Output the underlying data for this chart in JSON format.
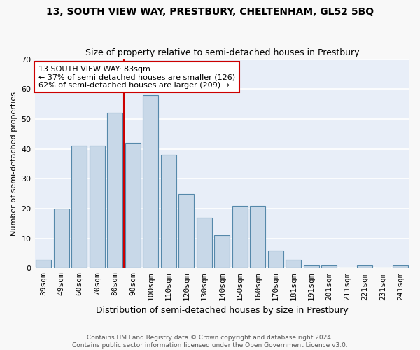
{
  "title1": "13, SOUTH VIEW WAY, PRESTBURY, CHELTENHAM, GL52 5BQ",
  "title2": "Size of property relative to semi-detached houses in Prestbury",
  "xlabel": "Distribution of semi-detached houses by size in Prestbury",
  "ylabel": "Number of semi-detached properties",
  "footnote": "Contains HM Land Registry data © Crown copyright and database right 2024.\nContains public sector information licensed under the Open Government Licence v3.0.",
  "categories": [
    "39sqm",
    "49sqm",
    "60sqm",
    "70sqm",
    "80sqm",
    "90sqm",
    "100sqm",
    "110sqm",
    "120sqm",
    "130sqm",
    "140sqm",
    "150sqm",
    "160sqm",
    "170sqm",
    "181sqm",
    "191sqm",
    "201sqm",
    "211sqm",
    "221sqm",
    "231sqm",
    "241sqm"
  ],
  "values": [
    3,
    20,
    41,
    41,
    52,
    42,
    58,
    38,
    25,
    17,
    11,
    21,
    21,
    6,
    3,
    1,
    1,
    0,
    1,
    0,
    1
  ],
  "bar_color": "#c8d8e8",
  "bar_edge_color": "#5588aa",
  "property_bin_index": 4,
  "vline_color": "#cc0000",
  "annotation_text": "13 SOUTH VIEW WAY: 83sqm\n← 37% of semi-detached houses are smaller (126)\n62% of semi-detached houses are larger (209) →",
  "annotation_box_color": "#ffffff",
  "annotation_box_edge": "#cc0000",
  "ylim": [
    0,
    70
  ],
  "yticks": [
    0,
    10,
    20,
    30,
    40,
    50,
    60,
    70
  ],
  "plot_bg_color": "#e8eef8",
  "grid_color": "#ffffff",
  "fig_bg_color": "#f8f8f8",
  "title1_fontsize": 10,
  "title2_fontsize": 9,
  "xlabel_fontsize": 9,
  "ylabel_fontsize": 8,
  "tick_fontsize": 8,
  "annotation_fontsize": 8,
  "footnote_fontsize": 6.5
}
